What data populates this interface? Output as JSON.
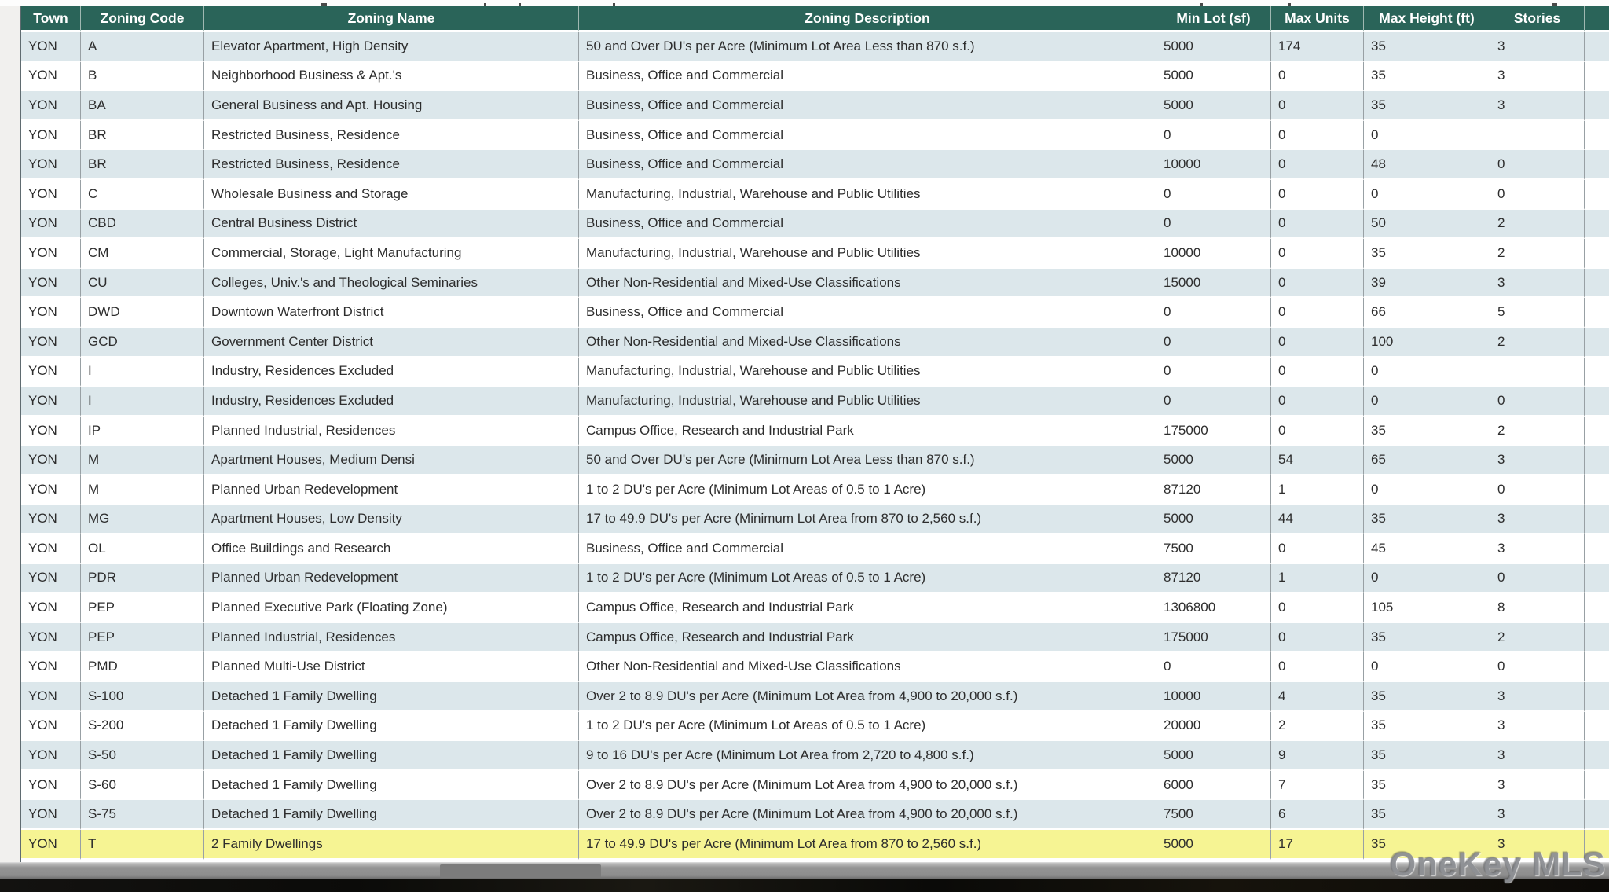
{
  "page": {
    "watermark": "OneKey MLS"
  },
  "table": {
    "columns": [
      {
        "key": "town",
        "label": "Town"
      },
      {
        "key": "code",
        "label": "Zoning Code"
      },
      {
        "key": "name",
        "label": "Zoning Name"
      },
      {
        "key": "description",
        "label": "Zoning Description"
      },
      {
        "key": "min_lot",
        "label": "Min Lot (sf)"
      },
      {
        "key": "max_units",
        "label": "Max Units"
      },
      {
        "key": "max_height",
        "label": "Max Height (ft)"
      },
      {
        "key": "stories",
        "label": "Stories"
      },
      {
        "key": "spacer",
        "label": ""
      }
    ],
    "rows": [
      {
        "town": "YON",
        "code": "A",
        "name": "Elevator Apartment, High Density",
        "description": "50 and Over DU's per Acre (Minimum Lot Area Less than 870 s.f.)",
        "min_lot": "5000",
        "max_units": "174",
        "max_height": "35",
        "stories": "3"
      },
      {
        "town": "YON",
        "code": "B",
        "name": "Neighborhood Business & Apt.'s",
        "description": "Business, Office and Commercial",
        "min_lot": "5000",
        "max_units": "0",
        "max_height": "35",
        "stories": "3"
      },
      {
        "town": "YON",
        "code": "BA",
        "name": "General Business and Apt. Housing",
        "description": "Business, Office and Commercial",
        "min_lot": "5000",
        "max_units": "0",
        "max_height": "35",
        "stories": "3"
      },
      {
        "town": "YON",
        "code": "BR",
        "name": "Restricted Business, Residence",
        "description": "Business, Office and Commercial",
        "min_lot": "0",
        "max_units": "0",
        "max_height": "0",
        "stories": ""
      },
      {
        "town": "YON",
        "code": "BR",
        "name": "Restricted Business, Residence",
        "description": "Business, Office and Commercial",
        "min_lot": "10000",
        "max_units": "0",
        "max_height": "48",
        "stories": "0"
      },
      {
        "town": "YON",
        "code": "C",
        "name": "Wholesale Business and Storage",
        "description": "Manufacturing, Industrial, Warehouse and Public Utilities",
        "min_lot": "0",
        "max_units": "0",
        "max_height": "0",
        "stories": "0"
      },
      {
        "town": "YON",
        "code": "CBD",
        "name": "Central Business District",
        "description": "Business, Office and Commercial",
        "min_lot": "0",
        "max_units": "0",
        "max_height": "50",
        "stories": "2"
      },
      {
        "town": "YON",
        "code": "CM",
        "name": "Commercial, Storage, Light Manufacturing",
        "description": "Manufacturing, Industrial, Warehouse and Public Utilities",
        "min_lot": "10000",
        "max_units": "0",
        "max_height": "35",
        "stories": "2"
      },
      {
        "town": "YON",
        "code": "CU",
        "name": "Colleges, Univ.'s and Theological Seminaries",
        "description": "Other Non-Residential and Mixed-Use Classifications",
        "min_lot": "15000",
        "max_units": "0",
        "max_height": "39",
        "stories": "3"
      },
      {
        "town": "YON",
        "code": "DWD",
        "name": "Downtown Waterfront District",
        "description": "Business, Office and Commercial",
        "min_lot": "0",
        "max_units": "0",
        "max_height": "66",
        "stories": "5"
      },
      {
        "town": "YON",
        "code": "GCD",
        "name": "Government Center District",
        "description": "Other Non-Residential and Mixed-Use Classifications",
        "min_lot": "0",
        "max_units": "0",
        "max_height": "100",
        "stories": "2"
      },
      {
        "town": "YON",
        "code": "I",
        "name": "Industry, Residences Excluded",
        "description": "Manufacturing, Industrial, Warehouse and Public Utilities",
        "min_lot": "0",
        "max_units": "0",
        "max_height": "0",
        "stories": ""
      },
      {
        "town": "YON",
        "code": "I",
        "name": "Industry, Residences Excluded",
        "description": "Manufacturing, Industrial, Warehouse and Public Utilities",
        "min_lot": "0",
        "max_units": "0",
        "max_height": "0",
        "stories": "0"
      },
      {
        "town": "YON",
        "code": "IP",
        "name": "Planned Industrial, Residences",
        "description": "Campus Office, Research and Industrial Park",
        "min_lot": "175000",
        "max_units": "0",
        "max_height": "35",
        "stories": "2"
      },
      {
        "town": "YON",
        "code": "M",
        "name": "Apartment Houses, Medium Densi",
        "description": "50 and Over DU's per Acre (Minimum Lot Area Less than 870 s.f.)",
        "min_lot": "5000",
        "max_units": "54",
        "max_height": "65",
        "stories": "3"
      },
      {
        "town": "YON",
        "code": "M",
        "name": "Planned Urban Redevelopment",
        "description": "1 to 2 DU's per Acre (Minimum Lot Areas of 0.5 to 1 Acre)",
        "min_lot": "87120",
        "max_units": "1",
        "max_height": "0",
        "stories": "0"
      },
      {
        "town": "YON",
        "code": "MG",
        "name": "Apartment Houses, Low Density",
        "description": "17 to 49.9 DU's per Acre (Minimum Lot Area from 870 to 2,560 s.f.)",
        "min_lot": "5000",
        "max_units": "44",
        "max_height": "35",
        "stories": "3"
      },
      {
        "town": "YON",
        "code": "OL",
        "name": "Office Buildings and Research",
        "description": "Business, Office and Commercial",
        "min_lot": "7500",
        "max_units": "0",
        "max_height": "45",
        "stories": "3"
      },
      {
        "town": "YON",
        "code": "PDR",
        "name": "Planned Urban Redevelopment",
        "description": "1 to 2 DU's per Acre (Minimum Lot Areas of 0.5 to 1 Acre)",
        "min_lot": "87120",
        "max_units": "1",
        "max_height": "0",
        "stories": "0"
      },
      {
        "town": "YON",
        "code": "PEP",
        "name": "Planned Executive Park (Floating Zone)",
        "description": "Campus Office, Research and Industrial Park",
        "min_lot": "1306800",
        "max_units": "0",
        "max_height": "105",
        "stories": "8"
      },
      {
        "town": "YON",
        "code": "PEP",
        "name": "Planned Industrial, Residences",
        "description": "Campus Office, Research and Industrial Park",
        "min_lot": "175000",
        "max_units": "0",
        "max_height": "35",
        "stories": "2"
      },
      {
        "town": "YON",
        "code": "PMD",
        "name": "Planned Multi-Use District",
        "description": "Other Non-Residential and Mixed-Use Classifications",
        "min_lot": "0",
        "max_units": "0",
        "max_height": "0",
        "stories": "0"
      },
      {
        "town": "YON",
        "code": "S-100",
        "name": "Detached 1 Family Dwelling",
        "description": "Over 2 to 8.9 DU's per Acre (Minimum Lot Area from 4,900 to 20,000 s.f.)",
        "min_lot": "10000",
        "max_units": "4",
        "max_height": "35",
        "stories": "3"
      },
      {
        "town": "YON",
        "code": "S-200",
        "name": "Detached 1 Family Dwelling",
        "description": "1 to 2 DU's per Acre (Minimum Lot Areas of 0.5 to 1 Acre)",
        "min_lot": "20000",
        "max_units": "2",
        "max_height": "35",
        "stories": "3"
      },
      {
        "town": "YON",
        "code": "S-50",
        "name": "Detached 1 Family Dwelling",
        "description": "9 to 16 DU's per Acre (Minimum Lot Area from 2,720 to 4,800 s.f.)",
        "min_lot": "5000",
        "max_units": "9",
        "max_height": "35",
        "stories": "3"
      },
      {
        "town": "YON",
        "code": "S-60",
        "name": "Detached 1 Family Dwelling",
        "description": "Over 2 to 8.9 DU's per Acre (Minimum Lot Area from 4,900 to 20,000 s.f.)",
        "min_lot": "6000",
        "max_units": "7",
        "max_height": "35",
        "stories": "3"
      },
      {
        "town": "YON",
        "code": "S-75",
        "name": "Detached 1 Family Dwelling",
        "description": "Over 2 to 8.9 DU's per Acre (Minimum Lot Area from 4,900 to 20,000 s.f.)",
        "min_lot": "7500",
        "max_units": "6",
        "max_height": "35",
        "stories": "3"
      },
      {
        "town": "YON",
        "code": "T",
        "name": "2 Family Dwellings",
        "description": "17 to 49.9 DU's per Acre (Minimum Lot Area from 870 to 2,560 s.f.)",
        "min_lot": "5000",
        "max_units": "17",
        "max_height": "35",
        "stories": "3",
        "highlighted": true
      }
    ]
  },
  "colors": {
    "header_bg": "#2a6459",
    "row_shaded": "#dce7eb",
    "row_plain": "#ffffff",
    "row_highlight": "#f6f493",
    "scrollbar_track": "#8d8d8d"
  }
}
